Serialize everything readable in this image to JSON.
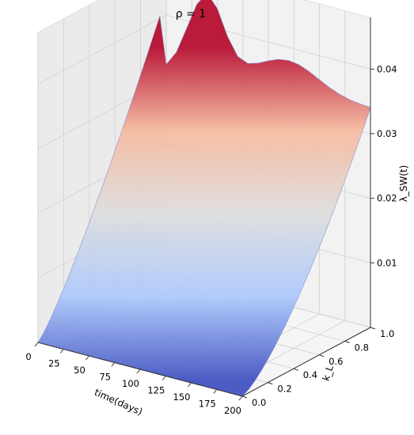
{
  "chart_data": {
    "type": "surface3d",
    "title": "ρ = 1",
    "xlabel": "time(days)",
    "ylabel": "k_L",
    "zlabel": "λ_SW(t)",
    "xlim": [
      0,
      200
    ],
    "ylim": [
      0,
      1
    ],
    "zlim": [
      0,
      0.048
    ],
    "x_ticks": [
      0,
      25,
      50,
      75,
      100,
      125,
      150,
      175,
      200
    ],
    "y_ticks": [
      0.0,
      0.2,
      0.4,
      0.6,
      0.8,
      1.0
    ],
    "z_ticks": [
      0.01,
      0.02,
      0.03,
      0.04
    ],
    "grid": true,
    "colormap": [
      "#3b4cc0",
      "#aac7fd",
      "#dddddd",
      "#f7b89c",
      "#b40426"
    ],
    "surface_description_points": [
      {
        "x": 0,
        "y": 0,
        "z": 0.0
      },
      {
        "x": 200,
        "y": 0,
        "z": 0.0
      },
      {
        "x": 0,
        "y": 1,
        "z": 0.043
      },
      {
        "x": 40,
        "y": 1,
        "z": 0.048
      },
      {
        "x": 200,
        "y": 1,
        "z": 0.034
      }
    ]
  }
}
